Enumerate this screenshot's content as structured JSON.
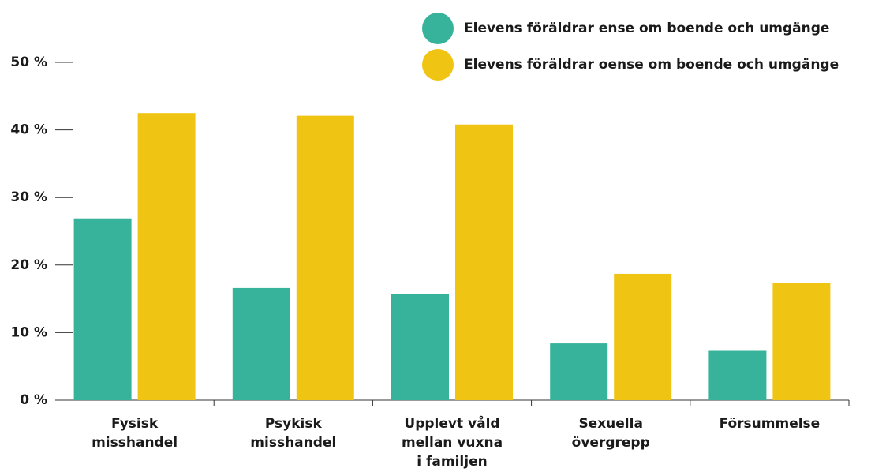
{
  "chart_data": {
    "type": "bar",
    "categories": [
      [
        "Fysisk",
        "misshandel"
      ],
      [
        "Psykisk",
        "misshandel"
      ],
      [
        "Upplevt våld",
        "mellan vuxna",
        "i familjen"
      ],
      [
        "Sexuella",
        "övergrepp"
      ],
      [
        "Försummelse"
      ]
    ],
    "series": [
      {
        "name": "Elevens föräldrar ense om boende och umgänge",
        "color": "#36b39a",
        "values": [
          26.9,
          16.6,
          15.7,
          8.4,
          7.3
        ]
      },
      {
        "name": "Elevens föräldrar oense om boende och umgänge",
        "color": "#f0c413",
        "values": [
          42.5,
          42.1,
          40.8,
          18.7,
          17.3
        ]
      }
    ],
    "ylim": [
      0,
      50
    ],
    "yticks": [
      {
        "value": 0,
        "label": "0 %"
      },
      {
        "value": 10,
        "label": "10 %"
      },
      {
        "value": 20,
        "label": "20 %"
      },
      {
        "value": 30,
        "label": "30 %"
      },
      {
        "value": 40,
        "label": "40 %"
      },
      {
        "value": 50,
        "label": "50 %"
      }
    ],
    "legend": "top-right"
  }
}
